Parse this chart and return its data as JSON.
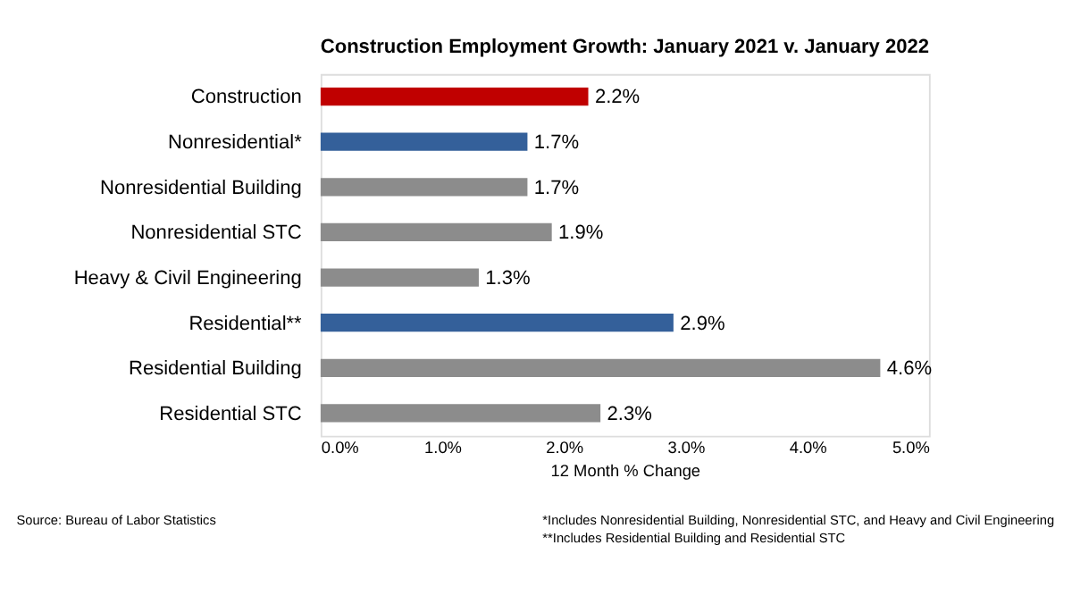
{
  "chart_data": {
    "type": "bar",
    "orientation": "horizontal",
    "title": "Construction Employment Growth: January 2021 v. January 2022",
    "xlabel": "12 Month % Change",
    "categories": [
      "Construction",
      "Nonresidential*",
      "Nonresidential Building",
      "Nonresidential STC",
      "Heavy & Civil Engineering",
      "Residential**",
      "Residential Building",
      "Residential STC"
    ],
    "values": [
      2.2,
      1.7,
      1.7,
      1.9,
      1.3,
      2.9,
      4.6,
      2.3
    ],
    "colors": [
      "#c00000",
      "#34609a",
      "#8c8c8c",
      "#8c8c8c",
      "#8c8c8c",
      "#34609a",
      "#8c8c8c",
      "#8c8c8c"
    ],
    "value_labels": [
      "2.2%",
      "1.7%",
      "1.7%",
      "1.9%",
      "1.3%",
      "2.9%",
      "4.6%",
      "2.3%"
    ],
    "xlim": [
      0,
      5
    ],
    "xticks": [
      {
        "value": 0,
        "label": "0.0%"
      },
      {
        "value": 1,
        "label": "1.0%"
      },
      {
        "value": 2,
        "label": "2.0%"
      },
      {
        "value": 3,
        "label": "3.0%"
      },
      {
        "value": 4,
        "label": "4.0%"
      },
      {
        "value": 5,
        "label": "5.0%"
      }
    ],
    "annotations": [
      "Source:  Bureau of Labor Statistics",
      "*Includes Nonresidential Building, Nonresidential STC, and Heavy and Civil Engineering",
      "**Includes Residential Building and Residential STC"
    ]
  }
}
